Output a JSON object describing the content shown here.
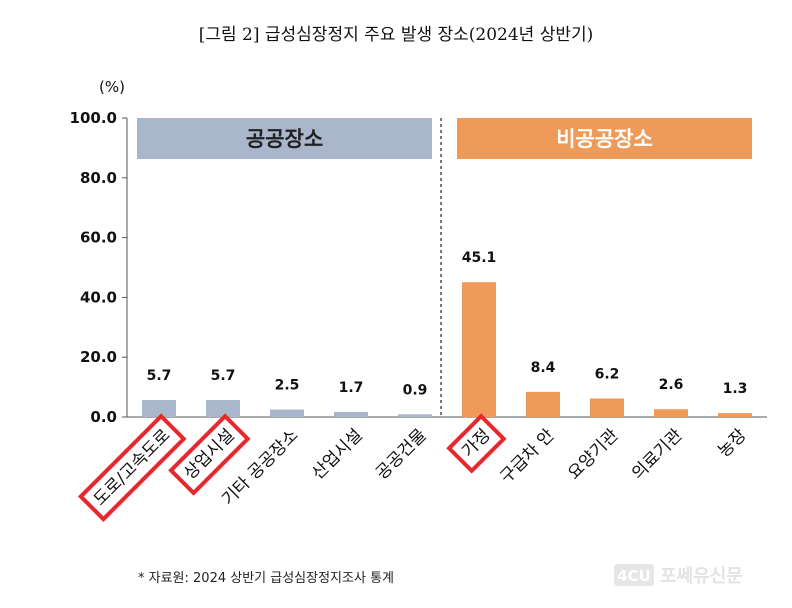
{
  "title": "[그림 2] 급성심장정지 주요 발생 장소(2024년 상반기)",
  "source_note": "* 자료원: 2024 상반기 급성심장정지조사 통계",
  "watermark": "포쎄유신문",
  "watermark_badge": "4CU",
  "colors": {
    "public": "#a9b6cb",
    "private": "#ef9a58",
    "highlight_box": "#e8262c",
    "divider": "#333333"
  },
  "chart_data": {
    "type": "bar",
    "unit_label": "(%)",
    "ylim": [
      0,
      100
    ],
    "yticks": [
      "0.0",
      "20.0",
      "40.0",
      "60.0",
      "80.0",
      "100.0"
    ],
    "categories": [
      "도로/고속도로",
      "상업시설",
      "기타 공공장소",
      "산업시설",
      "공공건물",
      "가정",
      "구급차 안",
      "요양기관",
      "의료기관",
      "농장"
    ],
    "values": [
      5.7,
      5.7,
      2.5,
      1.7,
      0.9,
      45.1,
      8.4,
      6.2,
      2.6,
      1.3
    ],
    "value_labels": [
      "5.7",
      "5.7",
      "2.5",
      "1.7",
      "0.9",
      "45.1",
      "8.4",
      "6.2",
      "2.6",
      "1.3"
    ],
    "groups": [
      {
        "label": "공공장소",
        "start": 0,
        "end": 4,
        "color": "#a9b6cb",
        "text_color": "#222222"
      },
      {
        "label": "비공공장소",
        "start": 5,
        "end": 9,
        "color": "#ef9a58",
        "text_color": "#ffffff"
      }
    ],
    "highlighted": [
      0,
      1,
      5
    ],
    "grid": false,
    "legend": "none"
  }
}
